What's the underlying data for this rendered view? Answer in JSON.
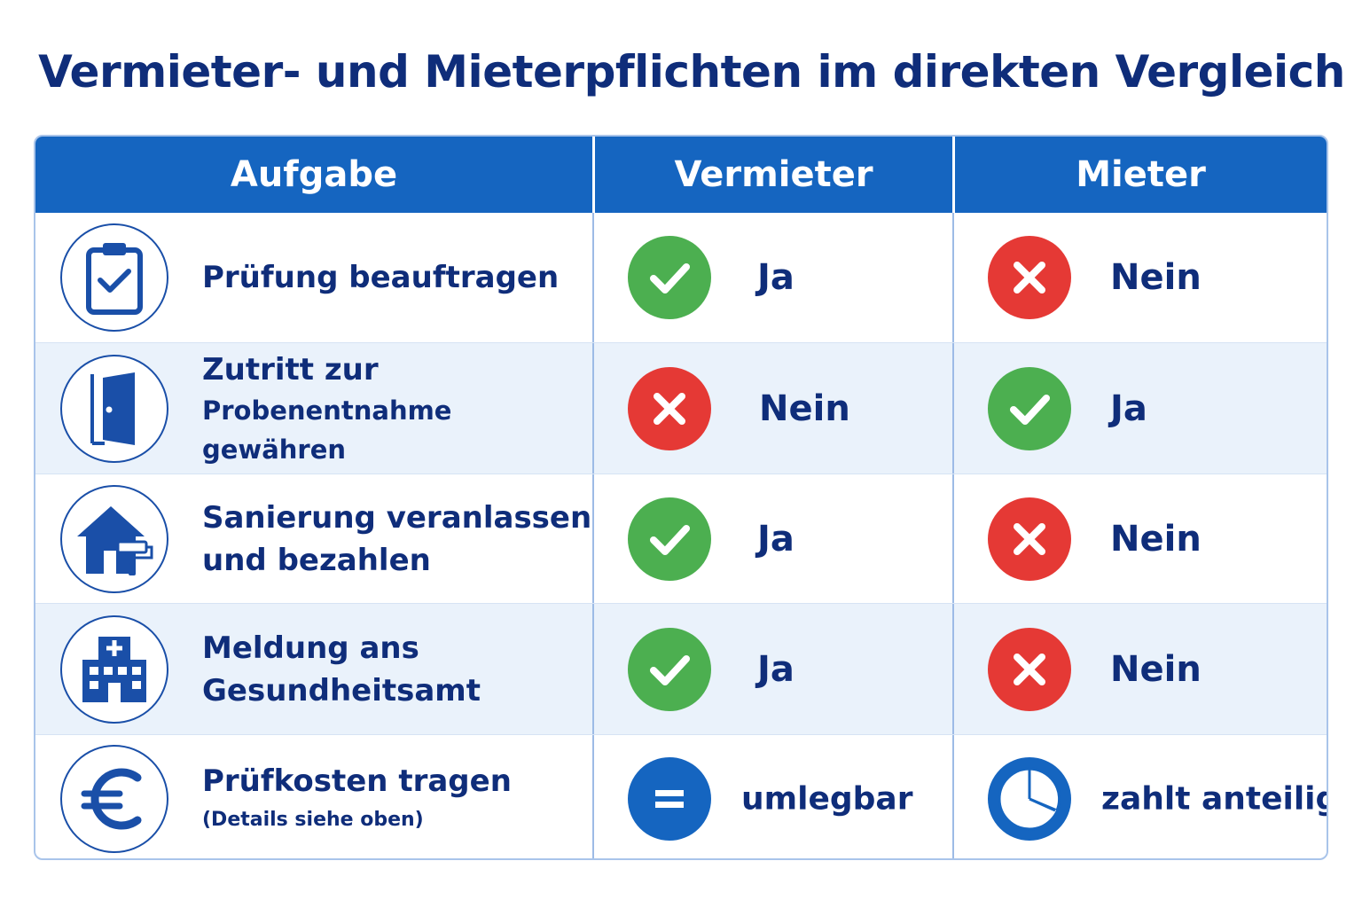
{
  "title": "Vermieter- und Mieterpflichten im direkten Vergleich",
  "columns": [
    "Aufgabe",
    "Vermieter",
    "Mieter"
  ],
  "colors": {
    "header": "#1565c0",
    "title": "#0f2d7a",
    "yes": "#4caf50",
    "no": "#e53935",
    "neutral": "#1565c0",
    "row_alt": "#eaf2fb"
  },
  "rows": [
    {
      "icon": "clipboard-check-icon",
      "task_line1": "Prüfung beauftragen",
      "task_line2": "",
      "vermieter": {
        "icon": "check-icon",
        "label": "Ja"
      },
      "mieter": {
        "icon": "cross-icon",
        "label": "Nein"
      }
    },
    {
      "icon": "door-icon",
      "task_line1": "Zutritt zur",
      "task_line2": "Probenentnahme gewähren",
      "vermieter": {
        "icon": "cross-icon",
        "label": "Nein"
      },
      "mieter": {
        "icon": "check-icon",
        "label": "Ja"
      }
    },
    {
      "icon": "house-paint-roller-icon",
      "task_line1": "Sanierung veranlassen",
      "task_line2": "und bezahlen",
      "vermieter": {
        "icon": "check-icon",
        "label": "Ja"
      },
      "mieter": {
        "icon": "cross-icon",
        "label": "Nein"
      }
    },
    {
      "icon": "hospital-building-icon",
      "task_line1": "Meldung ans",
      "task_line2": "Gesundheitsamt",
      "vermieter": {
        "icon": "check-icon",
        "label": "Ja"
      },
      "mieter": {
        "icon": "cross-icon",
        "label": "Nein"
      }
    },
    {
      "icon": "euro-icon",
      "task_line1": "Prüfkosten tragen",
      "task_line2": "(Details siehe oben)",
      "vermieter": {
        "icon": "equals-icon",
        "label": "umlegbar"
      },
      "mieter": {
        "icon": "pie-share-icon",
        "label": "zahlt anteilig"
      }
    }
  ]
}
